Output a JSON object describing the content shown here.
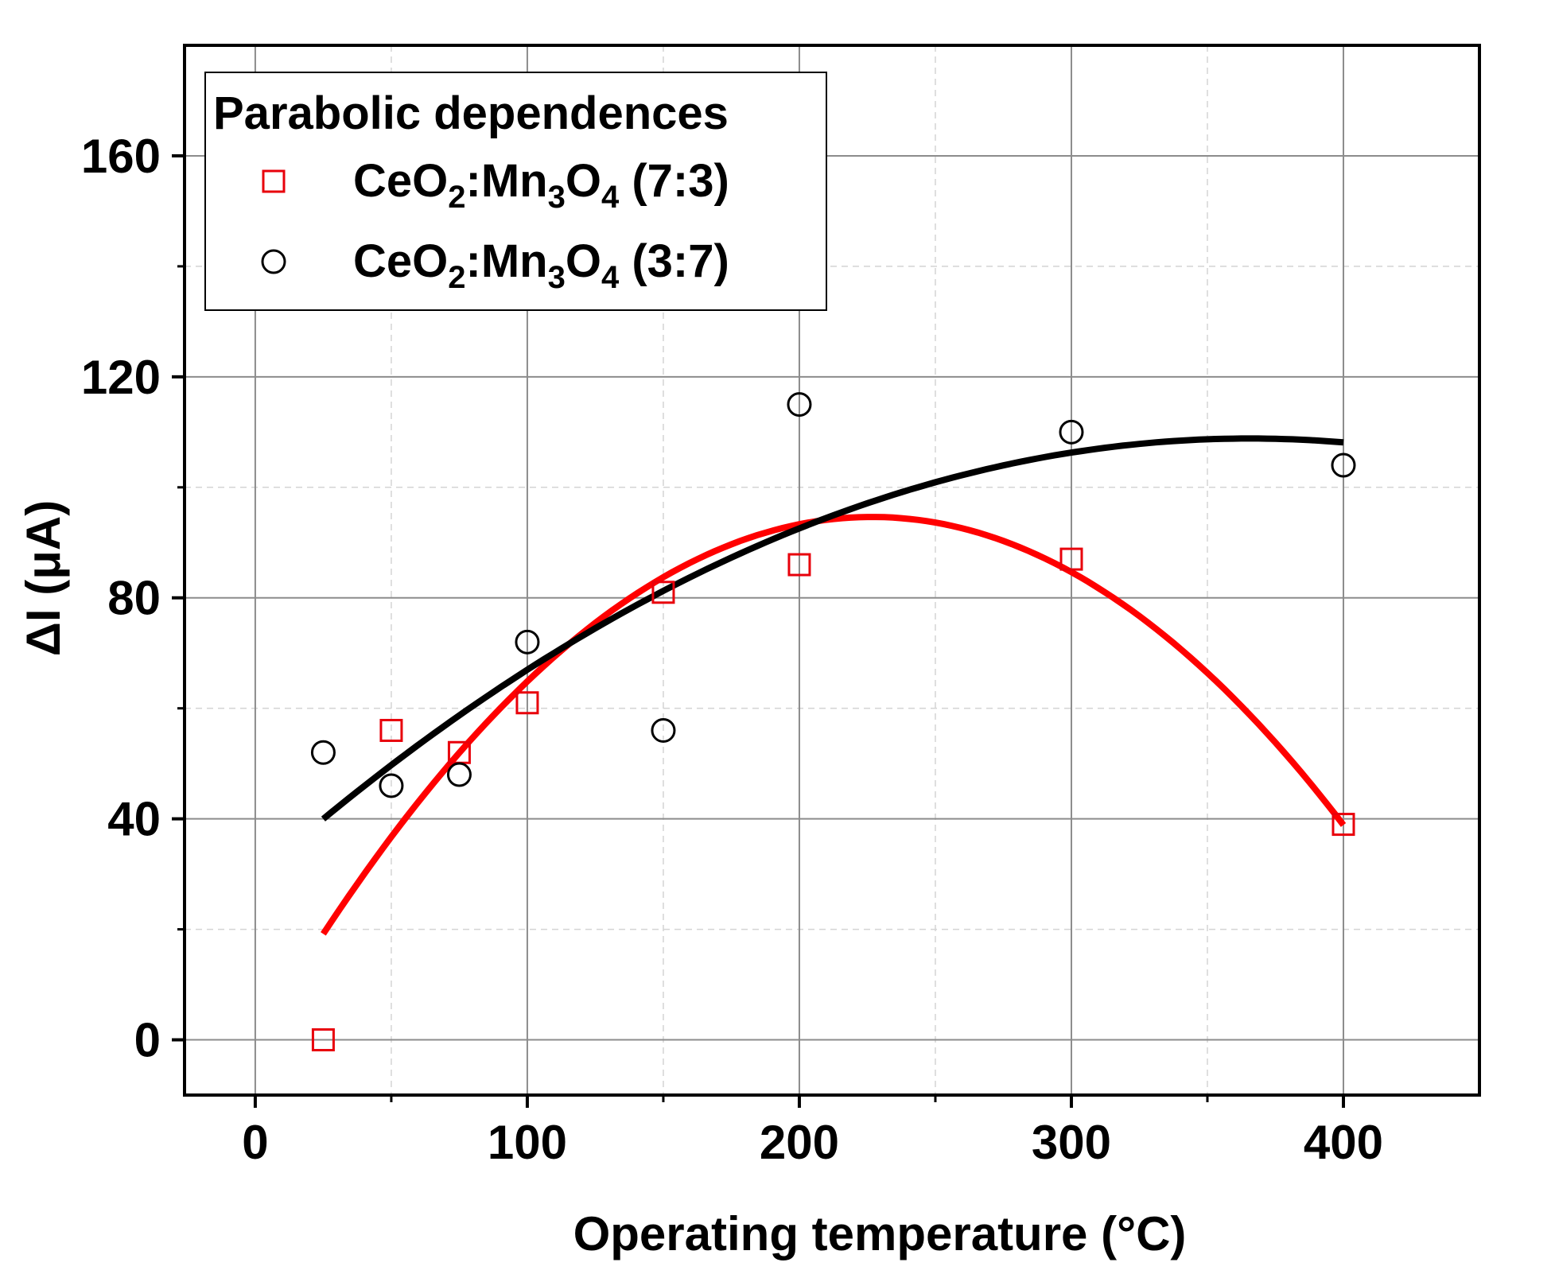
{
  "chart_data": {
    "type": "scatter",
    "xlabel": "Operating temperature (°C)",
    "ylabel": "ΔI (μA)",
    "xlim": [
      -26,
      450
    ],
    "ylim": [
      -10,
      180
    ],
    "xticks": [
      0,
      100,
      200,
      300,
      400
    ],
    "xtick_labels": [
      "0",
      "100",
      "200",
      "300",
      "400"
    ],
    "yticks": [
      0,
      40,
      80,
      120,
      160
    ],
    "ytick_labels": [
      "0",
      "40",
      "80",
      "120",
      "160"
    ],
    "x_minor_step": 50,
    "y_minor_step": 20,
    "grid": true,
    "legend": {
      "title": "Parabolic dependences",
      "position": "top-left",
      "entries": [
        {
          "marker": "square",
          "color": "#e8000b",
          "parts": [
            "CeO",
            "2",
            ":Mn",
            "3",
            "O",
            "4",
            " (7:3)"
          ]
        },
        {
          "marker": "circle",
          "color": "#000000",
          "parts": [
            "CeO",
            "2",
            ":Mn",
            "3",
            "O",
            "4",
            " (3:7)"
          ]
        }
      ]
    },
    "series": [
      {
        "name": "CeO2:Mn3O4 (7:3)",
        "marker": "square",
        "color": "#e8000b",
        "x": [
          25,
          50,
          75,
          100,
          150,
          200,
          300,
          400
        ],
        "y": [
          0,
          56,
          52,
          61,
          81,
          86,
          87,
          39
        ],
        "fit": {
          "type": "parabolic",
          "x": [
            25,
            75,
            150,
            230,
            300,
            400
          ],
          "y": [
            17,
            56,
            82,
            94,
            85,
            39
          ],
          "color": "#ff0000"
        }
      },
      {
        "name": "CeO2:Mn3O4 (3:7)",
        "marker": "circle",
        "color": "#000000",
        "x": [
          25,
          50,
          75,
          100,
          150,
          200,
          300,
          400
        ],
        "y": [
          52,
          46,
          48,
          72,
          56,
          115,
          110,
          104
        ],
        "fit": {
          "type": "parabolic",
          "x": [
            25,
            200,
            360,
            400
          ],
          "y": [
            40,
            92.5,
            109,
            108
          ],
          "color": "#000000"
        }
      }
    ]
  }
}
